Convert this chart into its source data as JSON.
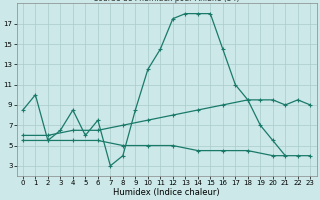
{
  "xlabel": "Humidex (Indice chaleur)",
  "bg_color": "#cce8e8",
  "grid_color": "#aacccc",
  "line_color": "#1a7a6a",
  "xlim": [
    -0.5,
    23.5
  ],
  "ylim": [
    2.0,
    19.0
  ],
  "yticks": [
    3,
    5,
    7,
    9,
    11,
    13,
    15,
    17
  ],
  "xticks": [
    0,
    1,
    2,
    3,
    4,
    5,
    6,
    7,
    8,
    9,
    10,
    11,
    12,
    13,
    14,
    15,
    16,
    17,
    18,
    19,
    20,
    21,
    22,
    23
  ],
  "line1_x": [
    0,
    1,
    2,
    3,
    4,
    5,
    6,
    7,
    8,
    9,
    10,
    11,
    12,
    13,
    14,
    15,
    16,
    17,
    18,
    19,
    20,
    21
  ],
  "line1_y": [
    8.5,
    10.0,
    5.5,
    6.5,
    8.5,
    6.0,
    7.5,
    3.0,
    4.0,
    8.5,
    12.5,
    14.5,
    17.5,
    18.0,
    18.0,
    18.0,
    14.5,
    11.0,
    9.5,
    7.0,
    5.5,
    4.0
  ],
  "line2_x": [
    0,
    2,
    4,
    6,
    8,
    10,
    12,
    14,
    16,
    18,
    19,
    20,
    21,
    22,
    23
  ],
  "line2_y": [
    6.0,
    6.0,
    6.5,
    6.5,
    7.0,
    7.5,
    8.0,
    8.5,
    9.0,
    9.5,
    9.5,
    9.5,
    9.0,
    9.5,
    9.0
  ],
  "line3_x": [
    0,
    2,
    4,
    6,
    8,
    10,
    12,
    14,
    16,
    18,
    20,
    22,
    23
  ],
  "line3_y": [
    5.5,
    5.5,
    5.5,
    5.5,
    5.0,
    5.0,
    5.0,
    4.5,
    4.5,
    4.5,
    4.0,
    4.0,
    4.0
  ],
  "title_fontsize": 5.5,
  "tick_fontsize": 5,
  "xlabel_fontsize": 6
}
